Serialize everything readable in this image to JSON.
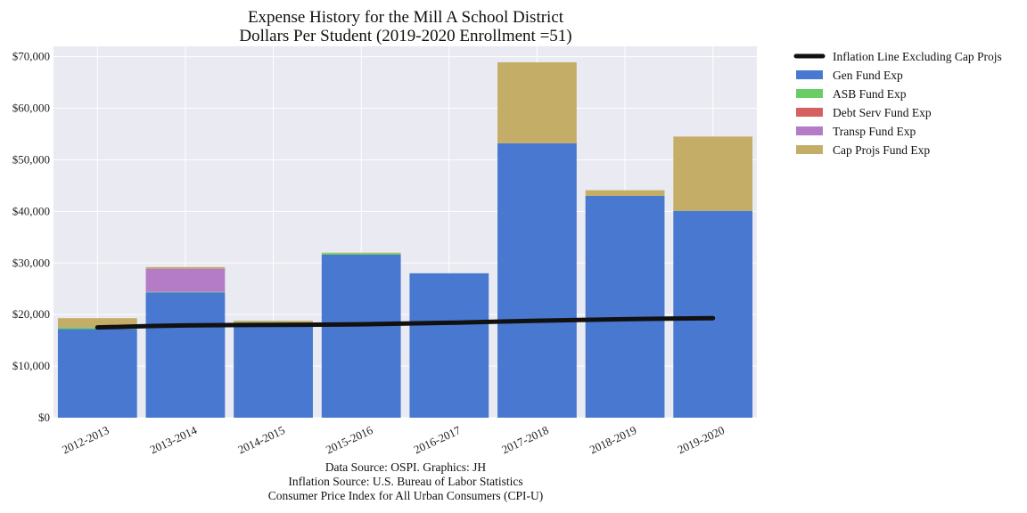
{
  "chart_data": {
    "type": "bar",
    "stacked": true,
    "title": "Expense History for the Mill A School District",
    "subtitle": "Dollars Per Student (2019-2020 Enrollment =51)",
    "xlabel": "",
    "ylabel": "",
    "categories": [
      "2012-2013",
      "2013-2014",
      "2014-2015",
      "2015-2016",
      "2016-2017",
      "2017-2018",
      "2018-2019",
      "2019-2020"
    ],
    "ylim": [
      0,
      72000
    ],
    "yticks": [
      0,
      10000,
      20000,
      30000,
      40000,
      50000,
      60000,
      70000
    ],
    "ytick_labels": [
      "$0",
      "$10,000",
      "$20,000",
      "$30,000",
      "$40,000",
      "$50,000",
      "$60,000",
      "$70,000"
    ],
    "grid": true,
    "legend_position": "outside-top-right",
    "series": [
      {
        "name": "Gen Fund Exp",
        "color": "#4878d0",
        "values": [
          17200,
          24300,
          18400,
          31600,
          28000,
          53200,
          43000,
          40100
        ]
      },
      {
        "name": "ASB Fund Exp",
        "color": "#6acc64",
        "values": [
          300,
          100,
          100,
          300,
          0,
          0,
          0,
          0
        ]
      },
      {
        "name": "Debt Serv Fund Exp",
        "color": "#d65f5f",
        "values": [
          0,
          0,
          0,
          0,
          0,
          0,
          0,
          0
        ]
      },
      {
        "name": "Transp Fund Exp",
        "color": "#b47cc7",
        "values": [
          0,
          4500,
          0,
          0,
          0,
          0,
          0,
          0
        ]
      },
      {
        "name": "Cap Projs Fund Exp",
        "color": "#c4ad66",
        "values": [
          1800,
          300,
          300,
          100,
          0,
          15700,
          1100,
          14400
        ]
      }
    ],
    "line_series": {
      "name": "Inflation Line Excluding Cap Projs",
      "color": "#111111",
      "values": [
        17500,
        17900,
        18000,
        18100,
        18400,
        18800,
        19100,
        19300
      ]
    },
    "notes": [
      "Data Source: OSPI. Graphics: JH",
      "Inflation Source: U.S. Bureau of Labor Statistics",
      "Consumer Price Index for All Urban Consumers (CPI-U)"
    ]
  }
}
